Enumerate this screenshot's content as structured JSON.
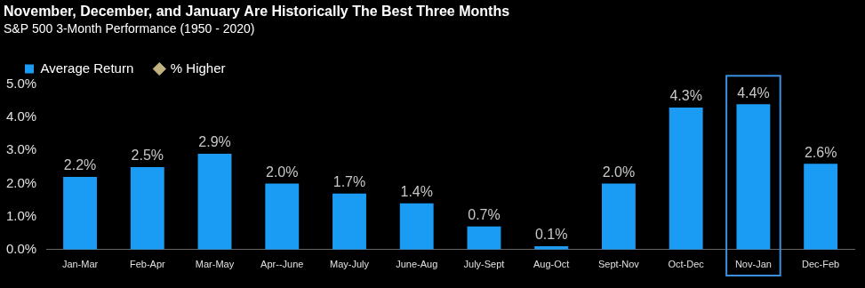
{
  "chart_data": {
    "type": "bar",
    "title": "November, December, and January Are Historically The Best Three Months",
    "subtitle": "S&P 500 3-Month Performance (1950 - 2020)",
    "categories": [
      "Jan-Mar",
      "Feb-Apr",
      "Mar-May",
      "Apr--June",
      "May-July",
      "June-Aug",
      "July-Sept",
      "Aug-Oct",
      "Sept-Nov",
      "Oct-Dec",
      "Nov-Jan",
      "Dec-Feb"
    ],
    "series": [
      {
        "name": "Average Return",
        "type": "bar",
        "color": "#1a9cf4",
        "values": [
          2.2,
          2.5,
          2.9,
          2.0,
          1.7,
          1.4,
          0.7,
          0.1,
          2.0,
          4.3,
          4.4,
          2.6
        ],
        "value_labels": [
          "2.2%",
          "2.5%",
          "2.9%",
          "2.0%",
          "1.7%",
          "1.4%",
          "0.7%",
          "0.1%",
          "2.0%",
          "4.3%",
          "4.4%",
          "2.6%"
        ]
      },
      {
        "name": "% Higher",
        "type": "scatter",
        "marker": "diamond",
        "color": "#c2b280",
        "values": [
          null,
          null,
          null,
          null,
          null,
          null,
          null,
          null,
          null,
          null,
          null,
          null
        ]
      }
    ],
    "ylim": [
      0,
      5
    ],
    "yticks": [
      {
        "value": 0,
        "label": "0.0%"
      },
      {
        "value": 1,
        "label": "1.0%"
      },
      {
        "value": 2,
        "label": "2.0%"
      },
      {
        "value": 3,
        "label": "3.0%"
      },
      {
        "value": 4,
        "label": "4.0%"
      },
      {
        "value": 5,
        "label": "5.0%"
      }
    ],
    "grid": false,
    "legend": "top",
    "data_labels": true
  }
}
